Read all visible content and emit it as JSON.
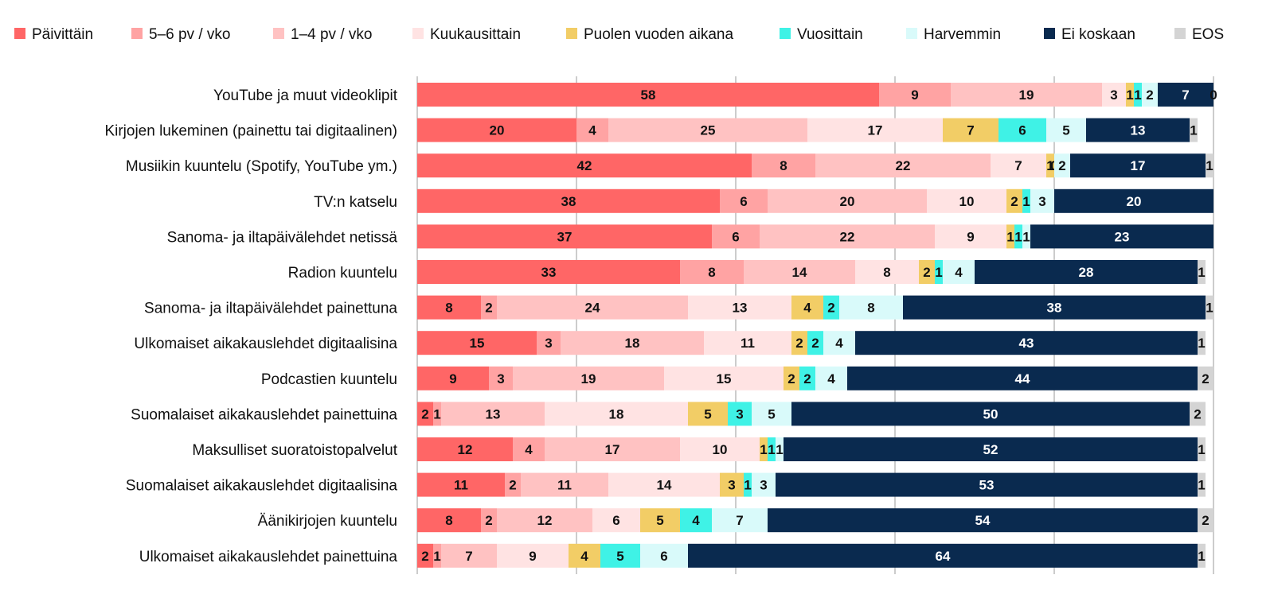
{
  "chart_data": {
    "type": "bar",
    "orientation": "horizontal",
    "stacked": true,
    "xlim": [
      0,
      100
    ],
    "grid": true,
    "legend_position": "top",
    "categories": [
      "YouTube ja muut videoklipit",
      "Kirjojen lukeminen (painettu tai digitaalinen)",
      "Musiikin kuuntelu (Spotify, YouTube ym.)",
      "TV:n katselu",
      "Sanoma- ja iltapäivälehdet netissä",
      "Radion kuuntelu",
      "Sanoma- ja iltapäivälehdet painettuna",
      "Ulkomaiset aikakauslehdet digitaalisina",
      "Podcastien kuuntelu",
      "Suomalaiset aikakauslehdet painettuina",
      "Maksulliset suoratoistopalvelut",
      "Suomalaiset aikakauslehdet digitaalisina",
      "Äänikirjojen kuuntelu",
      "Ulkomaiset aikakauslehdet painettuina"
    ],
    "series": [
      {
        "name": "Päivittäin",
        "color": "#ff6666",
        "label_color": "#111111",
        "values": [
          58,
          20,
          42,
          38,
          37,
          33,
          8,
          15,
          9,
          2,
          12,
          11,
          8,
          2
        ]
      },
      {
        "name": "5–6 pv / vko",
        "color": "#ffa3a3",
        "label_color": "#111111",
        "values": [
          9,
          4,
          8,
          6,
          6,
          8,
          2,
          3,
          3,
          1,
          4,
          2,
          2,
          1
        ]
      },
      {
        "name": "1–4 pv / vko",
        "color": "#ffc2c2",
        "label_color": "#111111",
        "values": [
          19,
          25,
          22,
          20,
          22,
          14,
          24,
          18,
          19,
          13,
          17,
          11,
          12,
          7
        ]
      },
      {
        "name": "Kuukausittain",
        "color": "#ffe3e3",
        "label_color": "#111111",
        "values": [
          3,
          17,
          7,
          10,
          9,
          8,
          13,
          11,
          15,
          18,
          10,
          14,
          6,
          9
        ]
      },
      {
        "name": "Puolen vuoden aikana",
        "color": "#f2cd66",
        "label_color": "#111111",
        "values": [
          1,
          7,
          1,
          2,
          1,
          2,
          4,
          2,
          2,
          5,
          1,
          3,
          5,
          4
        ]
      },
      {
        "name": "Vuosittain",
        "color": "#3ff2e6",
        "label_color": "#111111",
        "values": [
          1,
          6,
          0,
          1,
          1,
          1,
          2,
          2,
          2,
          3,
          1,
          1,
          4,
          5
        ]
      },
      {
        "name": "Harvemmin",
        "color": "#d9fafa",
        "label_color": "#111111",
        "values": [
          2,
          5,
          2,
          3,
          1,
          4,
          8,
          4,
          4,
          5,
          1,
          3,
          7,
          6
        ]
      },
      {
        "name": "Ei koskaan",
        "color": "#0a2a4f",
        "label_color": "#ffffff",
        "values": [
          7,
          13,
          17,
          20,
          23,
          28,
          38,
          43,
          44,
          50,
          52,
          53,
          54,
          64
        ]
      },
      {
        "name": "EOS",
        "color": "#d4d4d4",
        "label_color": "#111111",
        "values": [
          0,
          1,
          1,
          null,
          null,
          1,
          1,
          1,
          2,
          2,
          1,
          1,
          2,
          1
        ]
      }
    ]
  }
}
